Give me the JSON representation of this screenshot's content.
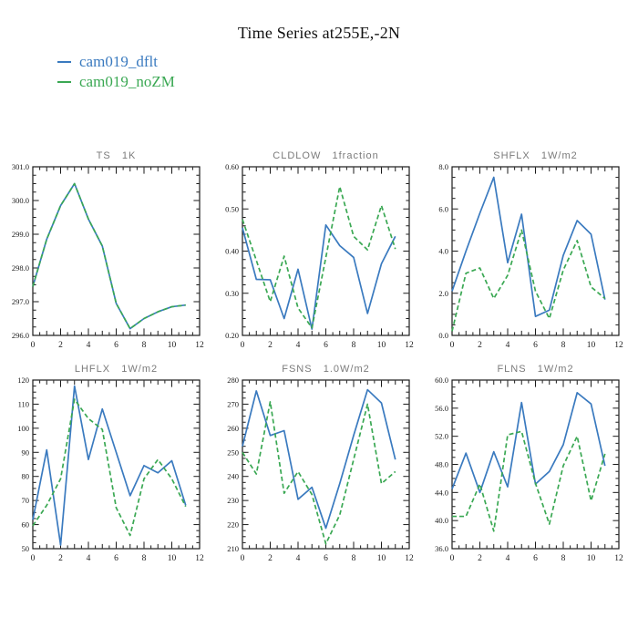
{
  "page": {
    "title": "Time Series at255E,-2N"
  },
  "legend": {
    "entries": [
      {
        "label": "cam019_dflt",
        "color": "#3a7abf",
        "style": "solid"
      },
      {
        "label": "cam019_noZM",
        "color": "#3aa853",
        "style": "dashed"
      }
    ]
  },
  "colors": {
    "dflt_line": "#3a7abf",
    "noZM_line": "#3aa853",
    "frame": "#1a1a1a",
    "tick_label": "#1a1a1a",
    "subplot_title": "#7b7b7b"
  },
  "chart_data": [
    {
      "id": "ts",
      "type": "line",
      "title_name": "TS",
      "title_units": "1K",
      "xlim": [
        0,
        12
      ],
      "x_tick_labels": [
        "0",
        "2",
        "4",
        "6",
        "8",
        "10",
        "12"
      ],
      "ylim": [
        296.0,
        301.0
      ],
      "y_tick_labels": [
        "296.0",
        "297.0",
        "298.0",
        "299.0",
        "300.0",
        "301.0"
      ],
      "y_minor_divisions": 4,
      "x": [
        0,
        1,
        2,
        3,
        4,
        5,
        6,
        7,
        8,
        9,
        10,
        11
      ],
      "series": [
        {
          "name": "cam019_dflt",
          "style": "solid",
          "values": [
            297.45,
            298.85,
            299.85,
            300.5,
            299.45,
            298.65,
            296.95,
            296.2,
            296.5,
            296.7,
            296.85,
            296.9
          ]
        },
        {
          "name": "cam019_noZM",
          "style": "dashed",
          "values": [
            297.45,
            298.85,
            299.85,
            300.5,
            299.45,
            298.65,
            296.95,
            296.2,
            296.5,
            296.7,
            296.85,
            296.9
          ]
        }
      ]
    },
    {
      "id": "cldlow",
      "type": "line",
      "title_name": "CLDLOW",
      "title_units": "1fraction",
      "xlim": [
        0,
        12
      ],
      "x_tick_labels": [
        "0",
        "2",
        "4",
        "6",
        "8",
        "10",
        "12"
      ],
      "ylim": [
        0.2,
        0.6
      ],
      "y_tick_labels": [
        "0.20",
        "0.30",
        "0.40",
        "0.50",
        "0.60"
      ],
      "y_minor_divisions": 5,
      "x": [
        0,
        1,
        2,
        3,
        4,
        5,
        6,
        7,
        8,
        9,
        10,
        11
      ],
      "series": [
        {
          "name": "cam019_dflt",
          "style": "solid",
          "values": [
            0.455,
            0.333,
            0.332,
            0.24,
            0.357,
            0.215,
            0.462,
            0.413,
            0.385,
            0.252,
            0.37,
            0.435
          ]
        },
        {
          "name": "cam019_noZM",
          "style": "dashed",
          "values": [
            0.475,
            0.378,
            0.28,
            0.388,
            0.265,
            0.218,
            0.385,
            0.553,
            0.435,
            0.403,
            0.508,
            0.405
          ]
        }
      ]
    },
    {
      "id": "shflx",
      "type": "line",
      "title_name": "SHFLX",
      "title_units": "1W/m2",
      "xlim": [
        0,
        12
      ],
      "x_tick_labels": [
        "0",
        "2",
        "4",
        "6",
        "8",
        "10",
        "12"
      ],
      "ylim": [
        0.0,
        8.0
      ],
      "y_tick_labels": [
        "0.0",
        "2.0",
        "4.0",
        "6.0",
        "8.0"
      ],
      "y_minor_divisions": 4,
      "x": [
        0,
        1,
        2,
        3,
        4,
        5,
        6,
        7,
        8,
        9,
        10,
        11
      ],
      "series": [
        {
          "name": "cam019_dflt",
          "style": "solid",
          "values": [
            2.1,
            4.0,
            5.8,
            7.5,
            3.45,
            5.75,
            0.9,
            1.2,
            3.8,
            5.45,
            4.8,
            1.7
          ]
        },
        {
          "name": "cam019_noZM",
          "style": "dashed",
          "values": [
            0.2,
            2.95,
            3.2,
            1.75,
            2.85,
            5.0,
            2.1,
            0.8,
            3.1,
            4.5,
            2.3,
            1.75
          ]
        }
      ]
    },
    {
      "id": "lhflx",
      "type": "line",
      "title_name": "LHFLX",
      "title_units": "1W/m2",
      "xlim": [
        0,
        12
      ],
      "x_tick_labels": [
        "0",
        "2",
        "4",
        "6",
        "8",
        "10",
        "12"
      ],
      "ylim": [
        50,
        120
      ],
      "y_tick_labels": [
        "50",
        "60",
        "70",
        "80",
        "90",
        "100",
        "110",
        "120"
      ],
      "y_minor_divisions": 4,
      "x": [
        0,
        1,
        2,
        3,
        4,
        5,
        6,
        7,
        8,
        9,
        10,
        11
      ],
      "series": [
        {
          "name": "cam019_dflt",
          "style": "solid",
          "values": [
            62,
            91,
            51.5,
            117.5,
            87,
            108,
            90,
            72,
            84.5,
            81.5,
            86.5,
            68
          ]
        },
        {
          "name": "cam019_noZM",
          "style": "dashed",
          "values": [
            59.5,
            68,
            79,
            112,
            104,
            99.5,
            67,
            55.5,
            79,
            87,
            79,
            67.5
          ]
        }
      ]
    },
    {
      "id": "fsns",
      "type": "line",
      "title_name": "FSNS",
      "title_units": "1.0W/m2",
      "xlim": [
        0,
        12
      ],
      "x_tick_labels": [
        "0",
        "2",
        "4",
        "6",
        "8",
        "10",
        "12"
      ],
      "ylim": [
        210,
        280
      ],
      "y_tick_labels": [
        "210",
        "220",
        "230",
        "240",
        "250",
        "260",
        "270",
        "280"
      ],
      "y_minor_divisions": 4,
      "x": [
        0,
        1,
        2,
        3,
        4,
        5,
        6,
        7,
        8,
        9,
        10,
        11
      ],
      "series": [
        {
          "name": "cam019_dflt",
          "style": "solid",
          "values": [
            252.5,
            275.5,
            257,
            259,
            230.5,
            235.5,
            218.5,
            237,
            257,
            276,
            270.5,
            247
          ]
        },
        {
          "name": "cam019_noZM",
          "style": "dashed",
          "values": [
            250,
            241,
            271,
            233,
            242,
            232.5,
            212,
            224,
            247,
            270,
            237,
            242
          ]
        }
      ]
    },
    {
      "id": "flns",
      "type": "line",
      "title_name": "FLNS",
      "title_units": "1W/m2",
      "xlim": [
        0,
        12
      ],
      "x_tick_labels": [
        "0",
        "2",
        "4",
        "6",
        "8",
        "10",
        "12"
      ],
      "ylim": [
        36.0,
        60.0
      ],
      "y_tick_labels": [
        "36.0",
        "40.0",
        "44.0",
        "48.0",
        "52.0",
        "56.0",
        "60.0"
      ],
      "y_minor_divisions": 4,
      "x": [
        0,
        1,
        2,
        3,
        4,
        5,
        6,
        7,
        8,
        9,
        10,
        11
      ],
      "series": [
        {
          "name": "cam019_dflt",
          "style": "solid",
          "values": [
            44.5,
            49.6,
            44.0,
            49.8,
            44.8,
            56.8,
            45.2,
            47.0,
            50.8,
            58.2,
            56.6,
            47.8
          ]
        },
        {
          "name": "cam019_noZM",
          "style": "dashed",
          "values": [
            40.6,
            40.6,
            45.2,
            38.5,
            52.2,
            52.7,
            45.3,
            39.5,
            47.8,
            52.0,
            42.8,
            49.5
          ]
        }
      ]
    }
  ]
}
